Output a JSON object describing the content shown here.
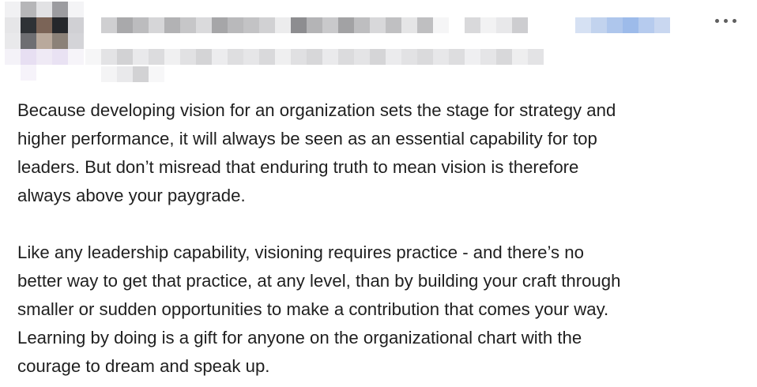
{
  "post": {
    "menu_icon": "ellipsis-icon",
    "paragraphs": [
      "Because developing vision for an organization sets the stage for strategy and\nhigher performance, it will always be seen as an essential capability for top\nleaders. But don’t misread that enduring truth to mean vision is therefore\nalways above your paygrade.",
      "Like any leadership capability, visioning requires practice - and there’s no\nbetter way to get that practice, at any level, than by building your craft through\nsmaller or sudden opportunities to make a contribution that comes your way.\nLearning by doing is a gift for anyone on the organizational chart with the\ncourage to dream and speak up."
    ]
  }
}
